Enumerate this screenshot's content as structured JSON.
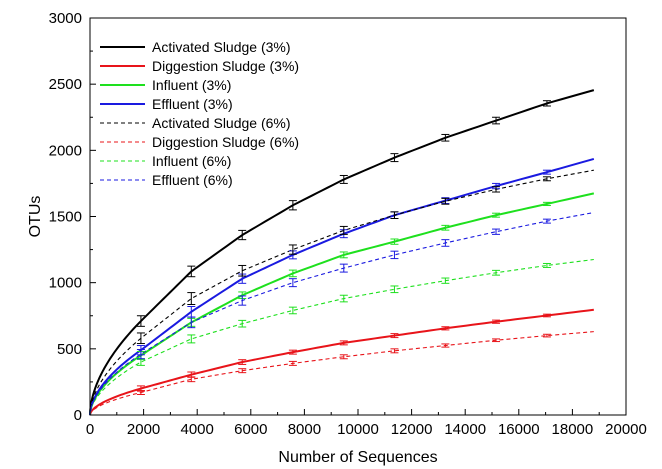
{
  "chart_data": {
    "type": "line",
    "title": "",
    "xlabel": "Number of Sequences",
    "ylabel": "OTUs",
    "xlim": [
      0,
      20000
    ],
    "ylim": [
      0,
      3000
    ],
    "xticks": [
      0,
      2000,
      4000,
      6000,
      8000,
      10000,
      12000,
      14000,
      16000,
      18000,
      20000
    ],
    "yticks": [
      0,
      500,
      1000,
      1500,
      2000,
      2500,
      3000
    ],
    "grid": false,
    "legend_position": "top-left",
    "sample_x": [
      1900,
      3780,
      5680,
      7570,
      9470,
      11360,
      13260,
      15150,
      17050,
      18800
    ],
    "series": [
      {
        "name": "Activated Sludge (3%)",
        "color": "#000000",
        "dash": false,
        "values": [
          710,
          1085,
          1360,
          1585,
          1780,
          1945,
          2095,
          2225,
          2355,
          2455
        ],
        "errors": [
          40,
          40,
          35,
          35,
          30,
          30,
          25,
          25,
          20,
          0
        ]
      },
      {
        "name": "Diggestion Sludge (3%)",
        "color": "#e8141a",
        "dash": false,
        "values": [
          200,
          305,
          400,
          475,
          545,
          600,
          655,
          705,
          752,
          795
        ],
        "errors": [
          20,
          20,
          18,
          15,
          15,
          15,
          12,
          12,
          10,
          0
        ]
      },
      {
        "name": "Influent (3%)",
        "color": "#1ee01e",
        "dash": false,
        "values": [
          450,
          700,
          905,
          1070,
          1210,
          1310,
          1415,
          1510,
          1595,
          1675
        ],
        "errors": [
          30,
          30,
          25,
          25,
          22,
          20,
          18,
          15,
          12,
          0
        ]
      },
      {
        "name": "Effluent (3%)",
        "color": "#1a1ae0",
        "dash": false,
        "values": [
          490,
          780,
          1030,
          1210,
          1370,
          1510,
          1620,
          1730,
          1835,
          1935
        ],
        "errors": [
          35,
          40,
          35,
          30,
          30,
          25,
          22,
          20,
          15,
          0
        ]
      },
      {
        "name": "Activated Sludge (6%)",
        "color": "#000000",
        "dash": true,
        "values": [
          580,
          880,
          1090,
          1250,
          1395,
          1510,
          1615,
          1705,
          1785,
          1850
        ],
        "errors": [
          40,
          45,
          40,
          35,
          30,
          25,
          22,
          20,
          15,
          0
        ]
      },
      {
        "name": "Diggestion Sludge (6%)",
        "color": "#e8141a",
        "dash": true,
        "values": [
          170,
          270,
          335,
          390,
          440,
          485,
          525,
          565,
          600,
          630
        ],
        "errors": [
          15,
          18,
          15,
          15,
          15,
          15,
          12,
          10,
          10,
          0
        ]
      },
      {
        "name": "Influent (6%)",
        "color": "#1ee01e",
        "dash": true,
        "values": [
          400,
          575,
          690,
          790,
          880,
          950,
          1015,
          1075,
          1130,
          1175
        ],
        "errors": [
          25,
          30,
          25,
          25,
          25,
          25,
          20,
          18,
          15,
          0
        ]
      },
      {
        "name": "Effluent (6%)",
        "color": "#1a1ae0",
        "dash": true,
        "values": [
          460,
          700,
          865,
          1000,
          1110,
          1210,
          1300,
          1385,
          1465,
          1530
        ],
        "errors": [
          35,
          40,
          35,
          30,
          30,
          28,
          25,
          20,
          15,
          0
        ]
      }
    ]
  }
}
